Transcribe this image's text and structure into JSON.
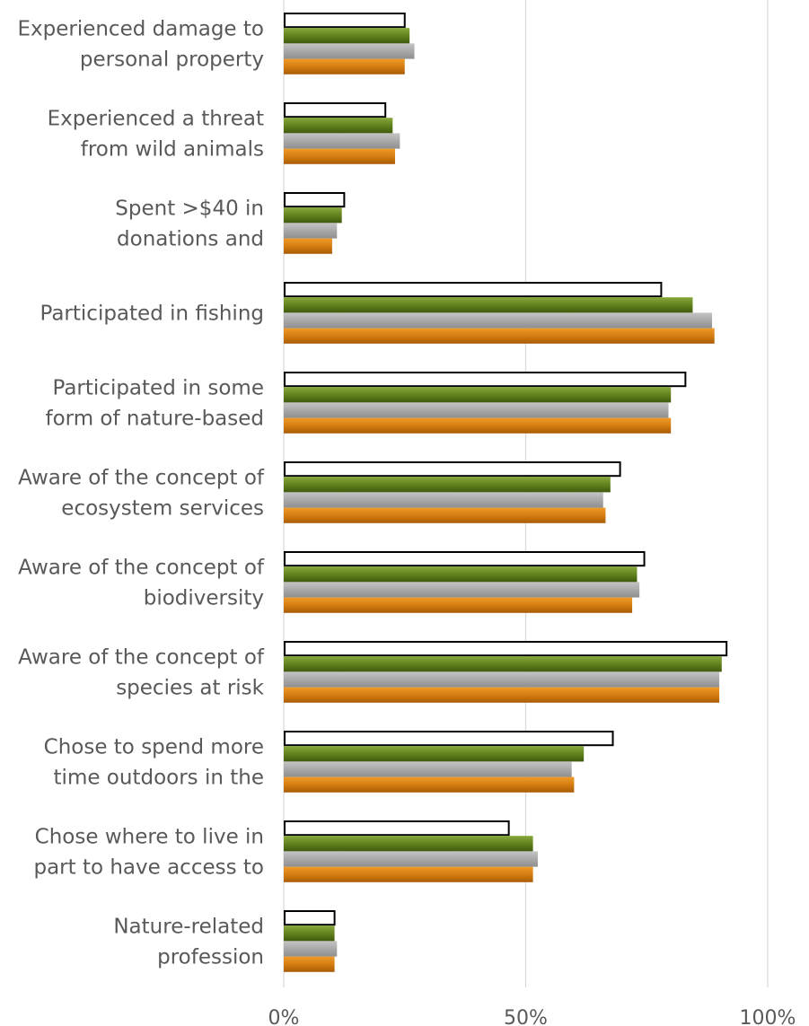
{
  "chart_data": {
    "type": "bar",
    "orientation": "horizontal",
    "grid": true,
    "legend": "none",
    "xlim": [
      0,
      100
    ],
    "x_ticks": [
      "0%",
      "50%",
      "100%"
    ],
    "categories": [
      [
        "Experienced damage to",
        "personal property"
      ],
      [
        "Experienced a threat",
        "from wild animals"
      ],
      [
        "Spent >$40 in",
        "donations and"
      ],
      [
        "Participated in fishing"
      ],
      [
        "Participated in some",
        "form of nature-based"
      ],
      [
        "Aware of the concept of",
        "ecosystem services"
      ],
      [
        "Aware of the concept of",
        "biodiversity"
      ],
      [
        "Aware of the concept of",
        "species at risk"
      ],
      [
        "Chose to spend more",
        "time outdoors in the"
      ],
      [
        "Chose where to live in",
        "part to have access to"
      ],
      [
        "Nature-related",
        "profession"
      ]
    ],
    "series": [
      {
        "color": "#ffffff",
        "stroke": "#000000",
        "values": [
          25,
          21,
          12.5,
          78,
          83,
          69.5,
          74.5,
          91.5,
          68,
          46.5,
          10.5
        ]
      },
      {
        "color": "#5a7a1a",
        "values": [
          26,
          22.5,
          12,
          84.5,
          80,
          67.5,
          73,
          90.5,
          62,
          51.5,
          10.5
        ]
      },
      {
        "color": "#a6a6a6",
        "values": [
          27,
          24,
          11,
          88.5,
          79.5,
          66,
          73.5,
          90,
          59.5,
          52.5,
          11
        ]
      },
      {
        "color": "#d27a0f",
        "values": [
          25,
          23,
          10,
          89,
          80,
          66.5,
          72,
          90,
          60,
          51.5,
          10.5
        ]
      }
    ]
  }
}
